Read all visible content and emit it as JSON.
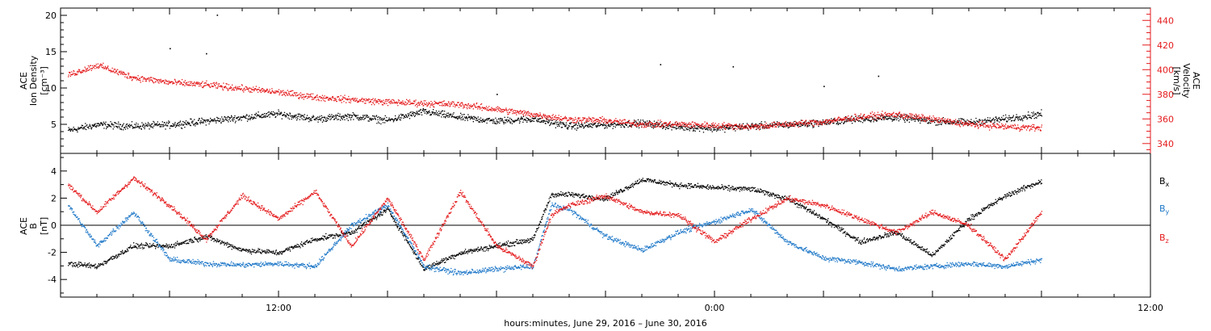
{
  "caption": "hours:minutes, June 29, 2016 – June 30, 2016",
  "colors": {
    "black": "#000000",
    "red": "#e41a1c",
    "blue": "#1f78c8"
  },
  "chart_data": [
    {
      "type": "scatter",
      "panel": "top",
      "ylabel_left": [
        "ACE",
        "Ion Density",
        "[cm⁻³]"
      ],
      "ylabel_right": [
        "ACE",
        "Velocity",
        "[km/s]"
      ],
      "xlim_hours": [
        6,
        36
      ],
      "ylim_left": [
        1,
        21
      ],
      "ylim_right": [
        332,
        450
      ],
      "yticks_left": [
        "5",
        "10",
        "15",
        "20"
      ],
      "yticks_right": [
        "340",
        "360",
        "380",
        "400",
        "420",
        "440"
      ],
      "xtick_labels": [
        {
          "hour": 12,
          "label": "12:00"
        },
        {
          "hour": 24,
          "label": "0:00"
        },
        {
          "hour": 36,
          "label": "12:00"
        }
      ],
      "series": [
        {
          "axis": "left",
          "color": "black",
          "x": [
            6.2,
            7.0,
            8.0,
            9.0,
            10.0,
            11.0,
            12.0,
            13.0,
            14.0,
            15.0,
            16.0,
            17.0,
            18.0,
            19.0,
            20.0,
            21.0,
            22.0,
            23.0,
            24.0,
            25.0,
            26.0,
            27.0,
            28.0,
            29.0,
            30.0,
            31.0,
            32.0,
            33.0
          ],
          "y": [
            4.2,
            5.0,
            4.8,
            5.0,
            5.5,
            6.0,
            6.5,
            5.8,
            6.2,
            5.6,
            6.8,
            6.0,
            5.5,
            5.8,
            4.8,
            5.0,
            5.2,
            4.7,
            4.5,
            4.8,
            5.0,
            5.3,
            5.8,
            6.0,
            5.5,
            5.3,
            5.8,
            6.5
          ]
        },
        {
          "axis": "right",
          "color": "red",
          "x": [
            6.2,
            7.0,
            8.0,
            9.0,
            10.0,
            11.0,
            12.0,
            13.0,
            14.0,
            15.0,
            16.0,
            17.0,
            18.0,
            19.0,
            20.0,
            21.0,
            22.0,
            23.0,
            24.0,
            25.0,
            26.0,
            27.0,
            28.0,
            29.0,
            30.0,
            31.0,
            32.0,
            33.0
          ],
          "y": [
            396,
            404,
            394,
            390,
            388,
            385,
            382,
            378,
            376,
            374,
            373,
            372,
            368,
            364,
            360,
            359,
            356,
            356,
            355,
            354,
            356,
            358,
            362,
            364,
            360,
            356,
            354,
            353
          ]
        }
      ]
    },
    {
      "type": "scatter",
      "panel": "bottom",
      "ylabel_left": [
        "ACE",
        "B",
        "[nT]"
      ],
      "xlim_hours": [
        6,
        36
      ],
      "ylim": [
        -5.3,
        5.3
      ],
      "yticks": [
        "-4",
        "-2",
        "0",
        "2",
        "4"
      ],
      "zero_line": true,
      "xtick_labels": [
        {
          "hour": 12,
          "label": "12:00"
        },
        {
          "hour": 24,
          "label": "0:00"
        },
        {
          "hour": 36,
          "label": "12:00"
        }
      ],
      "series": [
        {
          "name": "B",
          "subscript": "x",
          "color": "black",
          "x": [
            6.2,
            7.0,
            8.0,
            9.0,
            10.0,
            11.0,
            12.0,
            13.0,
            14.0,
            15.0,
            16.0,
            17.0,
            18.0,
            19.0,
            19.5,
            20.0,
            21.0,
            22.0,
            23.0,
            24.0,
            25.0,
            26.0,
            27.0,
            28.0,
            29.0,
            30.0,
            31.0,
            32.0,
            33.0
          ],
          "y": [
            -2.8,
            -3.0,
            -1.5,
            -1.5,
            -0.8,
            -1.8,
            -2.0,
            -1.0,
            -0.5,
            1.2,
            -3.2,
            -2.0,
            -1.5,
            -1.0,
            2.3,
            2.3,
            2.0,
            3.4,
            3.0,
            2.8,
            2.7,
            2.0,
            0.5,
            -1.2,
            -0.5,
            -2.2,
            0.5,
            2.2,
            3.3
          ]
        },
        {
          "name": "B",
          "subscript": "y",
          "color": "blue",
          "x": [
            6.2,
            7.0,
            8.0,
            9.0,
            10.0,
            11.0,
            12.0,
            13.0,
            14.0,
            15.0,
            16.0,
            17.0,
            18.0,
            19.0,
            19.5,
            20.0,
            21.0,
            22.0,
            23.0,
            24.0,
            25.0,
            26.0,
            27.0,
            28.0,
            29.0,
            30.0,
            31.0,
            32.0,
            33.0
          ],
          "y": [
            1.5,
            -1.5,
            1.0,
            -2.5,
            -2.8,
            -2.9,
            -2.8,
            -3.0,
            0.0,
            1.5,
            -3.0,
            -3.5,
            -3.2,
            -3.0,
            1.5,
            1.2,
            -0.8,
            -1.8,
            -0.5,
            0.3,
            1.2,
            -1.2,
            -2.4,
            -2.7,
            -3.2,
            -3.0,
            -2.8,
            -3.0,
            -2.5
          ]
        },
        {
          "name": "B",
          "subscript": "z",
          "color": "red",
          "x": [
            6.2,
            7.0,
            8.0,
            9.0,
            10.0,
            11.0,
            12.0,
            13.0,
            14.0,
            15.0,
            16.0,
            17.0,
            18.0,
            19.0,
            19.5,
            20.0,
            21.0,
            22.0,
            23.0,
            24.0,
            25.0,
            26.0,
            27.0,
            28.0,
            29.0,
            30.0,
            31.0,
            32.0,
            33.0
          ],
          "y": [
            3.0,
            1.0,
            3.5,
            1.5,
            -1.0,
            2.2,
            0.5,
            2.5,
            -1.5,
            2.0,
            -2.5,
            2.5,
            -1.5,
            -3.0,
            0.8,
            1.5,
            2.2,
            1.0,
            0.8,
            -1.2,
            0.5,
            2.0,
            1.5,
            0.5,
            -0.5,
            1.0,
            0.0,
            -2.5,
            1.0
          ]
        }
      ]
    }
  ]
}
